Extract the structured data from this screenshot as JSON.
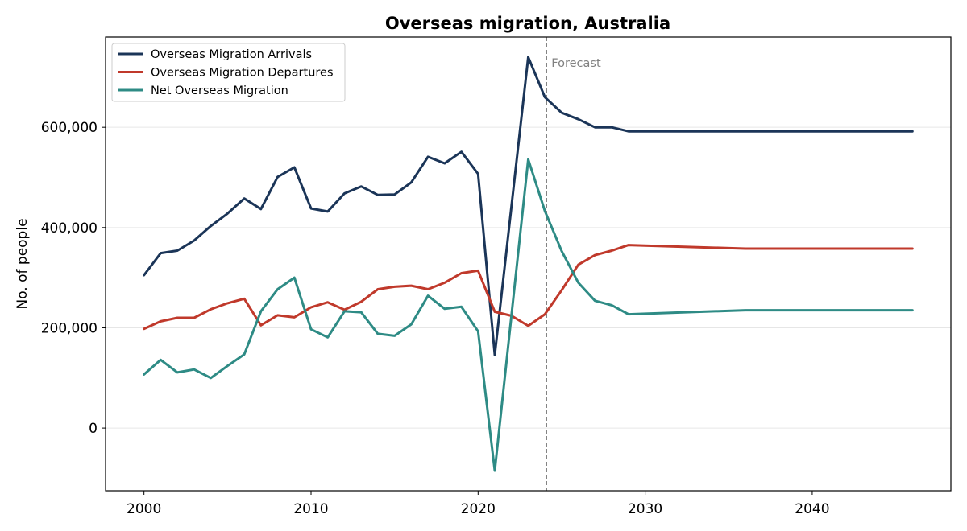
{
  "chart_data": {
    "type": "line",
    "title": "Overseas migration, Australia",
    "xlabel": "",
    "ylabel": "No. of people",
    "xlim": [
      1997.7,
      2048.3
    ],
    "ylim": [
      -125000,
      780000
    ],
    "x_ticks": [
      2000,
      2010,
      2020,
      2030,
      2040
    ],
    "x_tick_labels": [
      "2000",
      "2010",
      "2020",
      "2030",
      "2040"
    ],
    "y_ticks": [
      0,
      200000,
      400000,
      600000
    ],
    "y_tick_labels": [
      "0",
      "200,000",
      "400,000",
      "600,000"
    ],
    "grid": "horizontal",
    "legend_position": "top-left",
    "annotation": {
      "text": "Forecast",
      "x": 2024.1
    },
    "series": [
      {
        "name": "Overseas Migration Arrivals",
        "color": "#1b3558",
        "points": [
          [
            2000,
            305000
          ],
          [
            2001,
            349000
          ],
          [
            2002,
            354000
          ],
          [
            2003,
            374000
          ],
          [
            2004,
            403000
          ],
          [
            2005,
            428000
          ],
          [
            2006,
            458000
          ],
          [
            2007,
            437000
          ],
          [
            2008,
            501000
          ],
          [
            2009,
            520000
          ],
          [
            2010,
            438000
          ],
          [
            2011,
            432000
          ],
          [
            2012,
            468000
          ],
          [
            2013,
            482000
          ],
          [
            2014,
            465000
          ],
          [
            2015,
            466000
          ],
          [
            2016,
            490000
          ],
          [
            2017,
            541000
          ],
          [
            2018,
            528000
          ],
          [
            2019,
            551000
          ],
          [
            2020,
            507000
          ],
          [
            2021,
            146000
          ],
          [
            2023,
            740000
          ],
          [
            2024,
            660000
          ],
          [
            2025,
            629000
          ],
          [
            2026,
            616000
          ],
          [
            2027,
            600000
          ],
          [
            2028,
            600000
          ],
          [
            2029,
            592000
          ],
          [
            2036,
            592000
          ],
          [
            2046,
            592000
          ]
        ]
      },
      {
        "name": "Overseas Migration Departures",
        "color": "#c0392b",
        "points": [
          [
            2000,
            198000
          ],
          [
            2001,
            213000
          ],
          [
            2002,
            220000
          ],
          [
            2003,
            220000
          ],
          [
            2004,
            237000
          ],
          [
            2005,
            249000
          ],
          [
            2006,
            258000
          ],
          [
            2007,
            205000
          ],
          [
            2008,
            225000
          ],
          [
            2009,
            221000
          ],
          [
            2010,
            241000
          ],
          [
            2011,
            251000
          ],
          [
            2012,
            236000
          ],
          [
            2013,
            252000
          ],
          [
            2014,
            277000
          ],
          [
            2015,
            282000
          ],
          [
            2016,
            284000
          ],
          [
            2017,
            277000
          ],
          [
            2018,
            290000
          ],
          [
            2019,
            309000
          ],
          [
            2020,
            314000
          ],
          [
            2021,
            232000
          ],
          [
            2022,
            224000
          ],
          [
            2023,
            204000
          ],
          [
            2024,
            227000
          ],
          [
            2025,
            275000
          ],
          [
            2026,
            326000
          ],
          [
            2027,
            345000
          ],
          [
            2028,
            354000
          ],
          [
            2029,
            365000
          ],
          [
            2036,
            358000
          ],
          [
            2046,
            358000
          ]
        ]
      },
      {
        "name": "Net Overseas Migration",
        "color": "#2e8b85",
        "points": [
          [
            2000,
            107000
          ],
          [
            2001,
            136000
          ],
          [
            2002,
            111000
          ],
          [
            2003,
            117000
          ],
          [
            2004,
            100000
          ],
          [
            2005,
            124000
          ],
          [
            2006,
            147000
          ],
          [
            2007,
            233000
          ],
          [
            2008,
            277000
          ],
          [
            2009,
            300000
          ],
          [
            2010,
            197000
          ],
          [
            2011,
            181000
          ],
          [
            2012,
            233000
          ],
          [
            2013,
            231000
          ],
          [
            2014,
            188000
          ],
          [
            2015,
            184000
          ],
          [
            2016,
            207000
          ],
          [
            2017,
            264000
          ],
          [
            2018,
            238000
          ],
          [
            2019,
            242000
          ],
          [
            2020,
            193000
          ],
          [
            2021,
            -85000
          ],
          [
            2023,
            536000
          ],
          [
            2024,
            433000
          ],
          [
            2025,
            353000
          ],
          [
            2026,
            290000
          ],
          [
            2027,
            254000
          ],
          [
            2028,
            245000
          ],
          [
            2029,
            227000
          ],
          [
            2036,
            235000
          ],
          [
            2046,
            235000
          ]
        ]
      }
    ]
  }
}
